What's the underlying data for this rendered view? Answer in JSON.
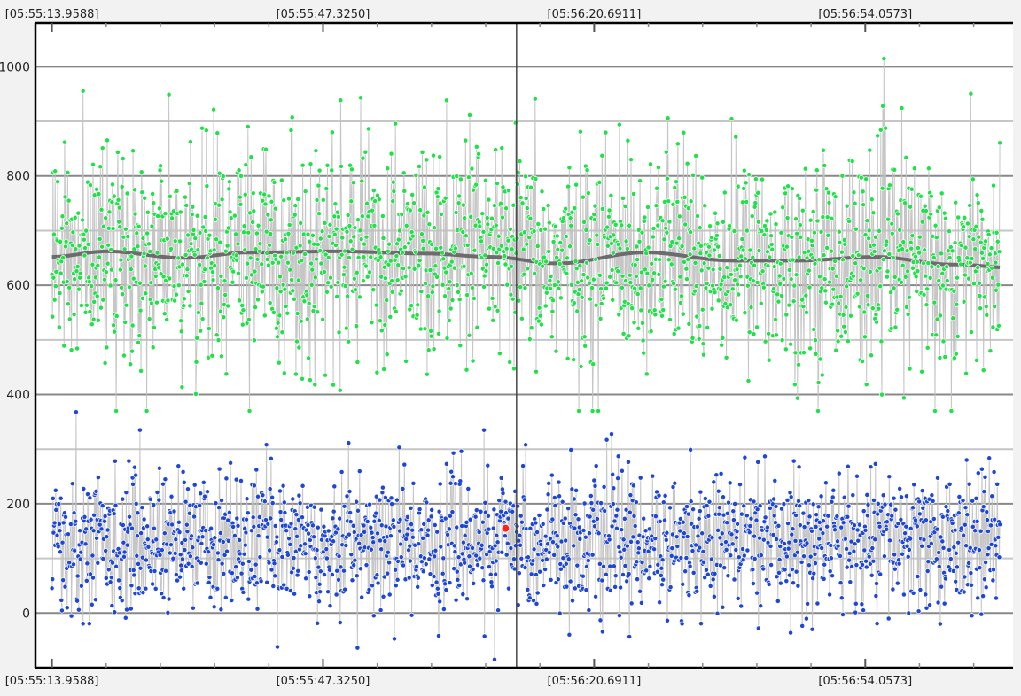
{
  "chart_data": {
    "type": "scatter",
    "title": "",
    "xlabel": "",
    "ylabel": "",
    "grid": true,
    "ylim": [
      -100,
      1080
    ],
    "y_major_ticks": [
      0,
      200,
      400,
      600,
      800,
      1000
    ],
    "y_tick_labels": [
      "0",
      "200",
      "400",
      "600",
      "800",
      "1000"
    ],
    "y_minor_ticks": [
      -100,
      100,
      300,
      500,
      700,
      900
    ],
    "x_range_seconds": [
      -1.5,
      87.5
    ],
    "x_tick_seconds": [
      0,
      24.6823,
      49.3661,
      74.0483
    ],
    "x_tick_labels": [
      "[05:55:13.9588]",
      "[05:55:47.3250]",
      "[05:56:20.6911]",
      "[05:56:54.0573]"
    ],
    "cursor_seconds": 42.3,
    "highlight_point": {
      "x_seconds": 41.3,
      "y": 155,
      "color": "#ff2020"
    },
    "series": [
      {
        "color": "#22e04a",
        "sample_count": 1800,
        "typical_range": [
          420,
          960
        ],
        "trend": [
          [
            0,
            652
          ],
          [
            5,
            662
          ],
          [
            12,
            650
          ],
          [
            18,
            660
          ],
          [
            26,
            662
          ],
          [
            34,
            658
          ],
          [
            40,
            652
          ],
          [
            46,
            640
          ],
          [
            54,
            660
          ],
          [
            62,
            645
          ],
          [
            68,
            645
          ],
          [
            75,
            652
          ],
          [
            82,
            638
          ],
          [
            89,
            630
          ]
        ]
      },
      {
        "color": "#1f47d6",
        "sample_count": 1800,
        "typical_range": [
          -40,
          320
        ],
        "center": 130
      }
    ],
    "colors": {
      "background": "#ffffff",
      "border": "#000000",
      "grid_major": "#888888",
      "grid_minor": "#c6c6c6",
      "stem": "#c0c0c0",
      "trend": "#6c6c6c",
      "cursor": "#444444"
    }
  }
}
